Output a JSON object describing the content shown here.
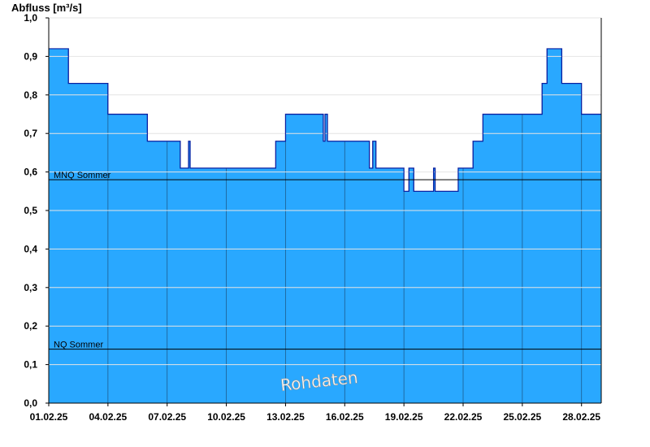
{
  "chart_data": {
    "type": "area",
    "title": "",
    "ylabel": "Abfluss [m³/s]",
    "xlabel": "",
    "ylim": [
      0,
      1.0
    ],
    "xlim": [
      "2025-02-01",
      "2025-02-28T24:00"
    ],
    "grid": true,
    "yticks": [
      0,
      0.1,
      0.2,
      0.3,
      0.4,
      0.5,
      0.6,
      0.7,
      0.8,
      0.9,
      1.0
    ],
    "ytick_labels": [
      "0,0",
      "0,1",
      "0,2",
      "0,3",
      "0,4",
      "0,5",
      "0,6",
      "0,7",
      "0,8",
      "0,9",
      "1,0"
    ],
    "xticks": [
      "2025-02-01",
      "2025-02-04",
      "2025-02-07",
      "2025-02-10",
      "2025-02-13",
      "2025-02-16",
      "2025-02-19",
      "2025-02-22",
      "2025-02-25",
      "2025-02-28"
    ],
    "xtick_labels": [
      "01.02.25",
      "04.02.25",
      "07.02.25",
      "10.02.25",
      "13.02.25",
      "16.02.25",
      "19.02.25",
      "22.02.25",
      "25.02.25",
      "28.02.25"
    ],
    "fill_color": "#29a8ff",
    "line_color": "#0a1fa0",
    "series": [
      {
        "x": [
          "2025-02-01T00:00",
          "2025-02-01T12:00",
          "2025-02-02T00:00",
          "2025-02-02T12:00",
          "2025-02-03T00:00",
          "2025-02-04T00:00",
          "2025-02-04T12:00",
          "2025-02-05T00:00",
          "2025-02-06T00:00",
          "2025-02-07T00:00",
          "2025-02-07T16:00",
          "2025-02-08T00:00",
          "2025-02-08T02:00",
          "2025-02-08T04:00",
          "2025-02-09T00:00",
          "2025-02-10T00:00",
          "2025-02-11T00:00",
          "2025-02-12T00:00",
          "2025-02-12T12:00",
          "2025-02-12T18:00",
          "2025-02-13T00:00",
          "2025-02-14T00:00",
          "2025-02-14T18:00",
          "2025-02-14T22:00",
          "2025-02-15T00:00",
          "2025-02-15T03:00",
          "2025-02-15T06:00",
          "2025-02-16T00:00",
          "2025-02-17T00:00",
          "2025-02-17T06:00",
          "2025-02-17T10:00",
          "2025-02-17T14:00",
          "2025-02-18T00:00",
          "2025-02-18T12:00",
          "2025-02-19T00:00",
          "2025-02-19T06:00",
          "2025-02-19T12:00",
          "2025-02-20T00:00",
          "2025-02-20T12:00",
          "2025-02-20T14:00",
          "2025-02-20T16:00",
          "2025-02-21T00:00",
          "2025-02-21T18:00",
          "2025-02-22T00:00",
          "2025-02-22T12:00",
          "2025-02-23T00:00",
          "2025-02-24T00:00",
          "2025-02-25T00:00",
          "2025-02-25T12:00",
          "2025-02-26T00:00",
          "2025-02-26T06:00",
          "2025-02-26T12:00",
          "2025-02-27T00:00",
          "2025-02-27T12:00",
          "2025-02-28T00:00",
          "2025-02-28T12:00",
          "2025-02-28T24:00"
        ],
        "y": [
          0.92,
          0.92,
          0.83,
          0.83,
          0.83,
          0.75,
          0.75,
          0.75,
          0.68,
          0.68,
          0.61,
          0.61,
          0.68,
          0.61,
          0.61,
          0.61,
          0.61,
          0.61,
          0.68,
          0.68,
          0.75,
          0.75,
          0.75,
          0.68,
          0.75,
          0.68,
          0.68,
          0.68,
          0.68,
          0.61,
          0.68,
          0.61,
          0.61,
          0.61,
          0.55,
          0.61,
          0.55,
          0.55,
          0.61,
          0.55,
          0.55,
          0.55,
          0.61,
          0.61,
          0.68,
          0.75,
          0.75,
          0.75,
          0.75,
          0.83,
          0.92,
          0.92,
          0.83,
          0.83,
          0.75,
          0.75,
          0.75
        ]
      }
    ],
    "reference_lines": [
      {
        "label": "MNQ Sommer",
        "value": 0.58
      },
      {
        "label": "NQ Sommer",
        "value": 0.14
      }
    ],
    "watermark": "Rohdaten"
  }
}
